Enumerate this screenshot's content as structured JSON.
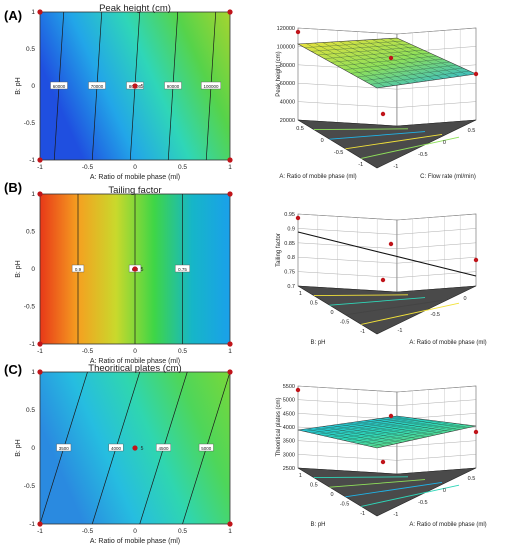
{
  "panels": [
    {
      "letter": "(A)",
      "title": "Peak height (cm)"
    },
    {
      "letter": "(B)",
      "title": "Tailing factor"
    },
    {
      "letter": "(C)",
      "title": "Theoritical plates (cm)"
    }
  ],
  "chart_data": [
    {
      "type": "heatmap",
      "title": "Peak height (cm)",
      "xlabel": "A: Ratio of mobile phase (ml)",
      "ylabel": "B: pH",
      "xlim": [
        -1,
        1
      ],
      "ylim": [
        -1,
        1
      ],
      "x_ticks": [
        "-1",
        "-0.5",
        "0",
        "0.5",
        "1"
      ],
      "y_ticks": [
        "-1",
        "-0.5",
        "0",
        "0.5",
        "1"
      ],
      "contours": [
        {
          "x": -0.8,
          "tilt": 0.05,
          "label": "60000"
        },
        {
          "x": -0.4,
          "tilt": 0.05,
          "label": "70000"
        },
        {
          "x": 0.0,
          "tilt": 0.05,
          "label": "80000"
        },
        {
          "x": 0.4,
          "tilt": 0.05,
          "label": "90000"
        },
        {
          "x": 0.8,
          "tilt": 0.05,
          "label": "100000"
        }
      ],
      "colors": [
        "#1f4fe0",
        "#22a6e8",
        "#2fd6b8",
        "#56d34a",
        "#a5d530"
      ],
      "design_points": [
        [
          -1,
          -1
        ],
        [
          -1,
          1
        ],
        [
          1,
          -1
        ],
        [
          1,
          1
        ],
        [
          0,
          0
        ]
      ],
      "center_label": "5"
    },
    {
      "type": "surface3d",
      "zlabel": "Peak height (cm)",
      "axis_a_label": "A: Ratio of mobile phase (ml)",
      "axis_b_label": "C: Flow rate (ml/min)",
      "z_ticks": [
        "20000",
        "40000",
        "60000",
        "80000",
        "100000",
        "120000"
      ],
      "a_ticks": [
        "0.5",
        "0",
        "-0.5",
        "-1"
      ],
      "b_ticks": [
        "-1",
        "-0.5",
        "0",
        "0.5"
      ],
      "colors": [
        "#f2e23a",
        "#8fe05a",
        "#1fb4e8"
      ]
    },
    {
      "type": "heatmap",
      "title": "Tailing factor",
      "xlabel": "A: Ratio of mobile phase (ml)",
      "ylabel": "B: pH",
      "xlim": [
        -1,
        1
      ],
      "ylim": [
        -1,
        1
      ],
      "x_ticks": [
        "-1",
        "-0.5",
        "0",
        "0.5",
        "1"
      ],
      "y_ticks": [
        "-1",
        "-0.5",
        "0",
        "0.5",
        "1"
      ],
      "contours": [
        {
          "x": -0.6,
          "tilt": 0.0,
          "label": "0.9"
        },
        {
          "x": 0.0,
          "tilt": 0.0,
          "label": "0.8"
        },
        {
          "x": 0.5,
          "tilt": 0.0,
          "label": "0.75"
        }
      ],
      "colors": [
        "#e83818",
        "#f5a020",
        "#c9d92c",
        "#3fd646",
        "#16b6c8",
        "#1aa0ea"
      ],
      "design_points": [
        [
          -1,
          -1
        ],
        [
          -1,
          1
        ],
        [
          1,
          -1
        ],
        [
          1,
          1
        ],
        [
          0,
          0
        ]
      ],
      "center_label": "5"
    },
    {
      "type": "surface3d",
      "zlabel": "Tailing factor",
      "axis_a_label": "B: pH",
      "axis_b_label": "A: Ratio of mobile phase (ml)",
      "z_ticks": [
        "0.7",
        "0.75",
        "0.8",
        "0.85",
        "0.9",
        "0.95"
      ],
      "a_ticks": [
        "1",
        "0.5",
        "0",
        "-0.5",
        "-1"
      ],
      "b_ticks": [
        "-1",
        "-0.5",
        "0"
      ],
      "colors": [
        "#444444",
        "#f2e23a",
        "#2fd6b8"
      ]
    },
    {
      "type": "heatmap",
      "title": "Theoritical plates (cm)",
      "xlabel": "A: Ratio of mobile phase (ml)",
      "ylabel": "B: pH",
      "xlim": [
        -1,
        1
      ],
      "ylim": [
        -1,
        1
      ],
      "x_ticks": [
        "-1",
        "-0.5",
        "0",
        "0.5",
        "1"
      ],
      "y_ticks": [
        "-1",
        "-0.5",
        "0",
        "0.5",
        "1"
      ],
      "contours": [
        {
          "x": -0.75,
          "tilt": 0.25,
          "label": "3500"
        },
        {
          "x": -0.2,
          "tilt": 0.25,
          "label": "4000"
        },
        {
          "x": 0.3,
          "tilt": 0.25,
          "label": "4500"
        },
        {
          "x": 0.75,
          "tilt": 0.25,
          "label": "5000"
        }
      ],
      "colors": [
        "#2a8ae0",
        "#26bde0",
        "#2fd6b0",
        "#4ed65a",
        "#78d83a"
      ],
      "design_points": [
        [
          -1,
          -1
        ],
        [
          -1,
          1
        ],
        [
          1,
          -1
        ],
        [
          1,
          1
        ],
        [
          0,
          0
        ]
      ],
      "center_label": "5"
    },
    {
      "type": "surface3d",
      "zlabel": "Theoritical plates (cm)",
      "axis_a_label": "B: pH",
      "axis_b_label": "A: Ratio of mobile phase (ml)",
      "z_ticks": [
        "2500",
        "3000",
        "3500",
        "4000",
        "4500",
        "5000",
        "5500"
      ],
      "a_ticks": [
        "1",
        "0.5",
        "0",
        "-0.5",
        "-1"
      ],
      "b_ticks": [
        "-1",
        "-0.5",
        "0",
        "0.5"
      ],
      "colors": [
        "#1fb4e8",
        "#2fd6b8",
        "#8fe05a"
      ]
    }
  ]
}
